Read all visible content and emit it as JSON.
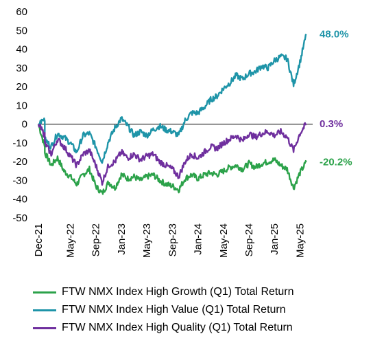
{
  "chart_data": {
    "type": "line",
    "title": "",
    "xlabel": "",
    "ylabel": "",
    "ylim": [
      -50,
      60
    ],
    "yticks": [
      60,
      50,
      40,
      30,
      20,
      10,
      0,
      -10,
      -20,
      -30,
      -40,
      -50
    ],
    "xlim": [
      "2021-12",
      "2025-07"
    ],
    "xticks": [
      {
        "label": "Dec-21",
        "date": "2021-12"
      },
      {
        "label": "May-22",
        "date": "2022-05"
      },
      {
        "label": "Sep-22",
        "date": "2022-09"
      },
      {
        "label": "Jan-23",
        "date": "2023-01"
      },
      {
        "label": "May-23",
        "date": "2023-05"
      },
      {
        "label": "Sep-23",
        "date": "2023-09"
      },
      {
        "label": "Jan-24",
        "date": "2024-01"
      },
      {
        "label": "May-24",
        "date": "2024-05"
      },
      {
        "label": "Sep-24",
        "date": "2024-09"
      },
      {
        "label": "Jan-25",
        "date": "2025-01"
      },
      {
        "label": "May-25",
        "date": "2025-05"
      }
    ],
    "legend_position": "bottom",
    "grid": false,
    "series": [
      {
        "name": "FTW NMX Index High Growth (Q1) Total Return",
        "color": "#2ca24a",
        "end_label": "-20.2%",
        "points": [
          [
            "2021-12",
            0
          ],
          [
            "2022-01",
            -12
          ],
          [
            "2022-01",
            -15
          ],
          [
            "2022-02",
            -22
          ],
          [
            "2022-03",
            -18
          ],
          [
            "2022-04",
            -25
          ],
          [
            "2022-05",
            -28
          ],
          [
            "2022-06",
            -32
          ],
          [
            "2022-07",
            -27
          ],
          [
            "2022-08",
            -24
          ],
          [
            "2022-09",
            -33
          ],
          [
            "2022-10",
            -37
          ],
          [
            "2022-11",
            -31
          ],
          [
            "2022-12",
            -34
          ],
          [
            "2023-01",
            -27
          ],
          [
            "2023-02",
            -29
          ],
          [
            "2023-03",
            -28
          ],
          [
            "2023-04",
            -30
          ],
          [
            "2023-05",
            -28
          ],
          [
            "2023-06",
            -27
          ],
          [
            "2023-07",
            -30
          ],
          [
            "2023-08",
            -32
          ],
          [
            "2023-09",
            -33
          ],
          [
            "2023-10",
            -35
          ],
          [
            "2023-11",
            -29
          ],
          [
            "2023-12",
            -27
          ],
          [
            "2024-01",
            -29
          ],
          [
            "2024-02",
            -27
          ],
          [
            "2024-03",
            -26
          ],
          [
            "2024-04",
            -27
          ],
          [
            "2024-05",
            -25
          ],
          [
            "2024-06",
            -23
          ],
          [
            "2024-07",
            -22
          ],
          [
            "2024-08",
            -24
          ],
          [
            "2024-09",
            -21
          ],
          [
            "2024-10",
            -23
          ],
          [
            "2024-11",
            -21
          ],
          [
            "2024-12",
            -20
          ],
          [
            "2025-01",
            -19
          ],
          [
            "2025-02",
            -22
          ],
          [
            "2025-03",
            -24
          ],
          [
            "2025-04",
            -34
          ],
          [
            "2025-05",
            -26
          ],
          [
            "2025-06",
            -20.2
          ]
        ]
      },
      {
        "name": "FTW NMX Index High Value (Q1) Total Return",
        "color": "#1e94a8",
        "end_label": "48.0%",
        "points": [
          [
            "2021-12",
            0
          ],
          [
            "2022-01",
            3
          ],
          [
            "2022-01",
            -8
          ],
          [
            "2022-02",
            -12
          ],
          [
            "2022-03",
            -5
          ],
          [
            "2022-04",
            -7
          ],
          [
            "2022-05",
            -10
          ],
          [
            "2022-06",
            -15
          ],
          [
            "2022-07",
            -6
          ],
          [
            "2022-08",
            -5
          ],
          [
            "2022-09",
            -12
          ],
          [
            "2022-10",
            -20
          ],
          [
            "2022-11",
            -9
          ],
          [
            "2022-12",
            -2
          ],
          [
            "2023-01",
            3
          ],
          [
            "2023-02",
            -1
          ],
          [
            "2023-03",
            -6
          ],
          [
            "2023-04",
            -4
          ],
          [
            "2023-05",
            -6
          ],
          [
            "2023-06",
            -3
          ],
          [
            "2023-07",
            -1
          ],
          [
            "2023-08",
            -3
          ],
          [
            "2023-09",
            -4
          ],
          [
            "2023-10",
            -6
          ],
          [
            "2023-11",
            2
          ],
          [
            "2023-12",
            6
          ],
          [
            "2024-01",
            6
          ],
          [
            "2024-02",
            9
          ],
          [
            "2024-03",
            13
          ],
          [
            "2024-04",
            15
          ],
          [
            "2024-05",
            19
          ],
          [
            "2024-06",
            22
          ],
          [
            "2024-07",
            26
          ],
          [
            "2024-08",
            24
          ],
          [
            "2024-09",
            27
          ],
          [
            "2024-10",
            28
          ],
          [
            "2024-11",
            31
          ],
          [
            "2024-12",
            30
          ],
          [
            "2025-01",
            34
          ],
          [
            "2025-02",
            36
          ],
          [
            "2025-03",
            35
          ],
          [
            "2025-04",
            21
          ],
          [
            "2025-05",
            33
          ],
          [
            "2025-06",
            48
          ]
        ]
      },
      {
        "name": "FTW NMX Index High Quality (Q1) Total Return",
        "color": "#6f2f9e",
        "end_label": "0.3%",
        "points": [
          [
            "2021-12",
            0
          ],
          [
            "2022-01",
            -6
          ],
          [
            "2022-01",
            -10
          ],
          [
            "2022-02",
            -16
          ],
          [
            "2022-03",
            -8
          ],
          [
            "2022-04",
            -12
          ],
          [
            "2022-05",
            -17
          ],
          [
            "2022-06",
            -22
          ],
          [
            "2022-07",
            -16
          ],
          [
            "2022-08",
            -14
          ],
          [
            "2022-09",
            -22
          ],
          [
            "2022-10",
            -31
          ],
          [
            "2022-11",
            -22
          ],
          [
            "2022-12",
            -20
          ],
          [
            "2023-01",
            -15
          ],
          [
            "2023-02",
            -18
          ],
          [
            "2023-03",
            -16
          ],
          [
            "2023-04",
            -19
          ],
          [
            "2023-05",
            -17
          ],
          [
            "2023-06",
            -16
          ],
          [
            "2023-07",
            -20
          ],
          [
            "2023-08",
            -22
          ],
          [
            "2023-09",
            -24
          ],
          [
            "2023-10",
            -28
          ],
          [
            "2023-11",
            -20
          ],
          [
            "2023-12",
            -16
          ],
          [
            "2024-01",
            -18
          ],
          [
            "2024-02",
            -15
          ],
          [
            "2024-03",
            -12
          ],
          [
            "2024-04",
            -13
          ],
          [
            "2024-05",
            -10
          ],
          [
            "2024-06",
            -8
          ],
          [
            "2024-07",
            -6
          ],
          [
            "2024-08",
            -9
          ],
          [
            "2024-09",
            -5
          ],
          [
            "2024-10",
            -7
          ],
          [
            "2024-11",
            -5
          ],
          [
            "2024-12",
            -4
          ],
          [
            "2025-01",
            -6
          ],
          [
            "2025-02",
            -4
          ],
          [
            "2025-03",
            -7
          ],
          [
            "2025-04",
            -14
          ],
          [
            "2025-05",
            -5
          ],
          [
            "2025-06",
            0.3
          ]
        ]
      }
    ]
  }
}
